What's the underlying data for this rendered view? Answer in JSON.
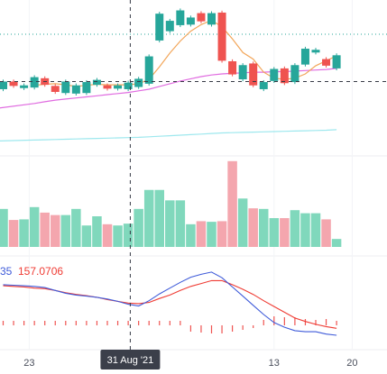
{
  "chart_data": {
    "type": "candlestick",
    "colors": {
      "up": "#26a69a",
      "up_volume": "#80d8bc",
      "down": "#ef5350",
      "down_volume": "#f4a6ae",
      "ma_fast": "#f2a65a",
      "ma_slow": "#e06be0",
      "ma_long": "#9ee8ee",
      "macd_line": "#3f5bd9",
      "signal_line": "#ef3b33",
      "grid": "#eceef2",
      "crosshair": "#363a45",
      "label_bg": "#3b3f4a"
    },
    "candles": [
      {
        "o": 156.2,
        "c": 157.6
      },
      {
        "o": 157.6,
        "c": 156.8
      },
      {
        "o": 156.4,
        "c": 156.9
      },
      {
        "o": 156.5,
        "c": 158.4
      },
      {
        "o": 158.2,
        "c": 157.0
      },
      {
        "o": 156.8,
        "c": 155.7
      },
      {
        "o": 155.5,
        "c": 157.6
      },
      {
        "o": 155.4,
        "c": 156.9
      },
      {
        "o": 155.5,
        "c": 157.5
      },
      {
        "o": 157.0,
        "c": 157.9
      },
      {
        "o": 156.9,
        "c": 156.3
      },
      {
        "o": 156.3,
        "c": 156.9
      },
      {
        "o": 156.2,
        "c": 157.4
      },
      {
        "o": 156.6,
        "c": 158.1
      },
      {
        "o": 157.2,
        "c": 162.2
      },
      {
        "o": 165.1,
        "c": 170.0
      },
      {
        "o": 166.8,
        "c": 168.7
      },
      {
        "o": 167.9,
        "c": 170.6
      },
      {
        "o": 168.0,
        "c": 169.3
      },
      {
        "o": 170.1,
        "c": 168.6
      },
      {
        "o": 168.0,
        "c": 170.1
      },
      {
        "o": 170.2,
        "c": 161.4
      },
      {
        "o": 161.3,
        "c": 158.9
      },
      {
        "o": 158.0,
        "c": 160.6
      },
      {
        "o": 160.9,
        "c": 156.9
      },
      {
        "o": 156.2,
        "c": 157.5
      },
      {
        "o": 157.7,
        "c": 159.9
      },
      {
        "o": 160.0,
        "c": 157.3
      },
      {
        "o": 157.5,
        "c": 160.6
      },
      {
        "o": 160.7,
        "c": 163.6
      },
      {
        "o": 162.9,
        "c": 163.4
      },
      {
        "o": 161.7,
        "c": 160.5
      },
      {
        "o": 160.0,
        "c": 162.4
      }
    ],
    "volumes": [
      62,
      44,
      45,
      65,
      56,
      52,
      52,
      62,
      35,
      50,
      37,
      35,
      38,
      62,
      93,
      93,
      76,
      76,
      37,
      42,
      41,
      42,
      140,
      79,
      63,
      62,
      47,
      47,
      60,
      55,
      55,
      45,
      13
    ],
    "ma_fast": [
      null,
      null,
      null,
      156.9,
      157.1,
      157.2,
      157.0,
      156.7,
      156.9,
      157.1,
      157.0,
      157.0,
      157.0,
      157.2,
      158.0,
      160.3,
      162.8,
      165.0,
      166.8,
      168.0,
      168.8,
      167.6,
      165.4,
      162.9,
      161.7,
      159.3,
      158.2,
      158.0,
      158.2,
      159.0,
      160.5,
      161.4,
      162.3
    ],
    "ma_slow": [
      null,
      null,
      null,
      153.6,
      153.9,
      154.2,
      154.4,
      154.6,
      154.8,
      155.0,
      155.2,
      155.4,
      155.6,
      155.9,
      156.2,
      156.7,
      157.2,
      157.7,
      158.1,
      158.5,
      158.8,
      159.0,
      159.1,
      159.2,
      159.3,
      159.3,
      159.4,
      159.4,
      159.5,
      159.6,
      159.7,
      159.8,
      160.0
    ],
    "ma_long": [
      null,
      null,
      null,
      146.9,
      146.95,
      147.0,
      147.05,
      147.1,
      147.15,
      147.2,
      147.25,
      147.3,
      147.35,
      147.4,
      147.5,
      147.6,
      147.7,
      147.8,
      147.9,
      148.0,
      148.1,
      148.2,
      148.25,
      148.3,
      148.35,
      148.4,
      148.45,
      148.5,
      148.55,
      148.6,
      148.65,
      148.7,
      148.8
    ],
    "macd": [
      1.1,
      1.05,
      1.0,
      0.95,
      0.85,
      0.6,
      0.35,
      0.2,
      0.1,
      0.0,
      -0.15,
      -0.35,
      -0.6,
      -0.75,
      -0.3,
      0.3,
      0.8,
      1.3,
      1.75,
      2.0,
      2.2,
      1.7,
      0.9,
      0.1,
      -0.7,
      -1.5,
      -2.2,
      -2.6,
      -2.9,
      -3.0,
      -3.0,
      -3.2,
      -3.3
    ],
    "signal": [
      1.0,
      0.95,
      0.9,
      0.8,
      0.75,
      0.6,
      0.4,
      0.25,
      0.15,
      0.0,
      -0.2,
      -0.35,
      -0.5,
      -0.55,
      -0.45,
      -0.1,
      0.2,
      0.6,
      0.95,
      1.2,
      1.45,
      1.45,
      1.1,
      0.7,
      0.25,
      -0.3,
      -0.8,
      -1.3,
      -1.8,
      -2.1,
      -2.35,
      -2.55,
      -2.7
    ],
    "histogram": [
      0.5,
      0.5,
      0.5,
      0.5,
      0.5,
      0.5,
      0.5,
      0.5,
      0.5,
      0.5,
      0.5,
      0.5,
      0.5,
      0.5,
      0.5,
      0.5,
      0.5,
      0.5,
      -0.7,
      -0.8,
      -0.9,
      -0.9,
      -0.7,
      -0.5,
      -0.3,
      0.6,
      1.0,
      0.9,
      0.9,
      0.7,
      0.6,
      0.7,
      0.5
    ],
    "legend": {
      "macd_value": "35",
      "signal_value": "157.0706"
    },
    "x_axis": {
      "ticks": [
        {
          "index": 2.5,
          "label": "23"
        },
        {
          "index": 26.0,
          "label": "13"
        },
        {
          "index": 33.5,
          "label": "20"
        }
      ]
    },
    "crosshair": {
      "index": 12.2,
      "price": 157.6,
      "date_label": "31 Aug '21"
    },
    "ranges": {
      "price": [
        144.5,
        172.5
      ],
      "volume": [
        0,
        150
      ],
      "macd": [
        -4.4,
        3.6
      ]
    }
  }
}
